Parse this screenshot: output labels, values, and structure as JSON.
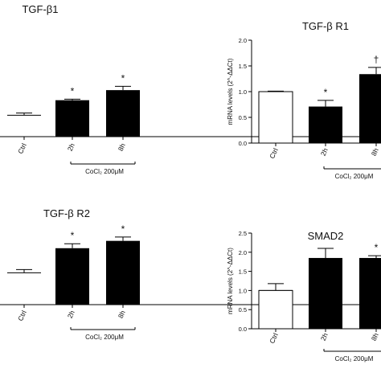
{
  "chart_data": [
    {
      "type": "bar",
      "title": "TGF-β1",
      "categories": [
        "Ctrl",
        "2h",
        "8h"
      ],
      "values": [
        1.0,
        1.7,
        2.17
      ],
      "errors": [
        0.1,
        0.05,
        0.18
      ],
      "significance": [
        "",
        "*",
        "*"
      ],
      "fills": [
        "#ffffff",
        "#000000",
        "#000000"
      ],
      "ylabel": "",
      "treatment_label": "CoCl₂ 200μM",
      "ylim": [
        0,
        3.0
      ],
      "yticks": []
    },
    {
      "type": "bar",
      "title": "TGF-β R1",
      "categories": [
        "Ctrl",
        "2h",
        "8h"
      ],
      "values": [
        1.0,
        0.71,
        1.34
      ],
      "errors": [
        0.01,
        0.12,
        0.13
      ],
      "significance": [
        "",
        "*",
        "†"
      ],
      "fills": [
        "#ffffff",
        "#000000",
        "#000000"
      ],
      "ylabel": "mRNA levels (2^-ΔΔCt)",
      "treatment_label": "CoCl₂ 200μM",
      "ylim": [
        0,
        2.0
      ],
      "yticks": [
        "0.0",
        "0.5",
        "1.0",
        "1.5",
        "2.0"
      ]
    },
    {
      "type": "bar",
      "title": "TGF-β R2",
      "categories": [
        "Ctrl",
        "2h",
        "8h"
      ],
      "values": [
        1.0,
        1.77,
        2.0
      ],
      "errors": [
        0.1,
        0.14,
        0.12
      ],
      "significance": [
        "",
        "*",
        "*"
      ],
      "fills": [
        "#ffffff",
        "#000000",
        "#000000"
      ],
      "ylabel": "",
      "treatment_label": "CoCl₂ 200μM",
      "ylim": [
        0,
        3.0
      ],
      "yticks": []
    },
    {
      "type": "bar",
      "title": "SMAD2",
      "categories": [
        "Ctrl",
        "2h",
        "8h"
      ],
      "values": [
        1.0,
        1.85,
        1.85
      ],
      "errors": [
        0.18,
        0.25,
        0.06
      ],
      "significance": [
        "",
        "",
        "*"
      ],
      "fills": [
        "#ffffff",
        "#000000",
        "#000000"
      ],
      "ylabel": "mRNA levels (2^-ΔΔCt)",
      "treatment_label": "CoCl₂ 200μM",
      "ylim": [
        0,
        2.5
      ],
      "yticks": [
        "0.0",
        "0.5",
        "1.0",
        "1.5",
        "2.0",
        "2.5"
      ]
    }
  ]
}
